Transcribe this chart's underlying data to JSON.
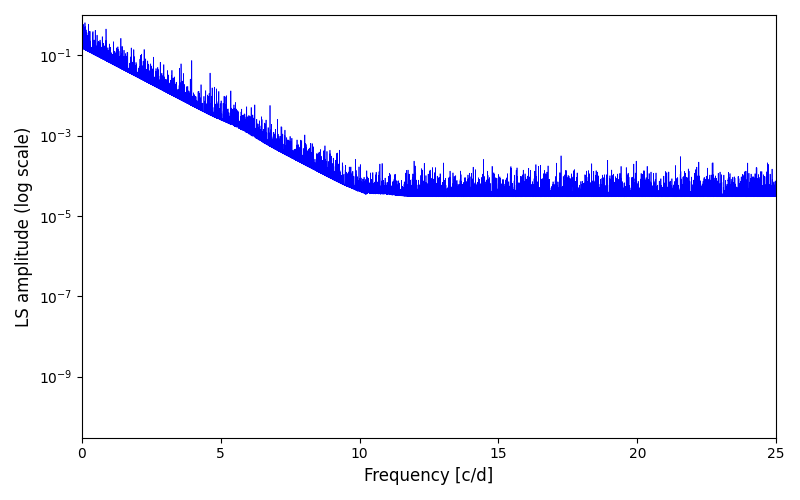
{
  "title": "",
  "xlabel": "Frequency [c/d]",
  "ylabel": "LS amplitude (log scale)",
  "xlim": [
    0,
    25
  ],
  "ylim_log": [
    3e-11,
    1.0
  ],
  "line_color": "#0000ff",
  "line_width": 0.5,
  "figsize": [
    8.0,
    5.0
  ],
  "dpi": 100,
  "freq_max": 25.0,
  "n_points": 10000,
  "seed": 7
}
